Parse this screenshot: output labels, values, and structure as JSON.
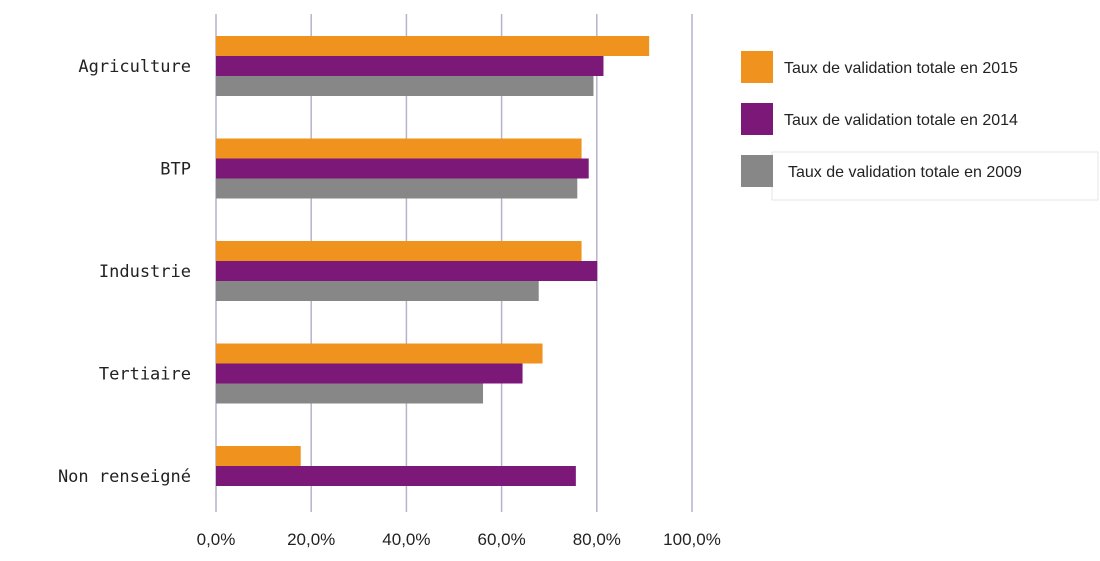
{
  "chart_data": {
    "type": "bar",
    "orientation": "horizontal",
    "categories": [
      "Agriculture",
      "BTP",
      "Industrie",
      "Tertiaire",
      "Non renseigné"
    ],
    "series": [
      {
        "name": "Taux de validation totale en 2015",
        "color": "#F0921E",
        "values": [
          91.0,
          76.8,
          76.8,
          68.6,
          17.8
        ]
      },
      {
        "name": "Taux de validation totale en 2014",
        "color": "#7B1878",
        "values": [
          81.4,
          78.3,
          80.1,
          64.4,
          75.6
        ]
      },
      {
        "name": "Taux de validation totale en 2009",
        "color": "#878787",
        "values": [
          79.3,
          75.9,
          67.8,
          56.1,
          null
        ]
      }
    ],
    "xlim": [
      0,
      100
    ],
    "xticks": [
      0,
      20,
      40,
      60,
      80,
      100
    ],
    "xtick_labels": [
      "0,0%",
      "20,0%",
      "40,0%",
      "60,0%",
      "80,0%",
      "100,0%"
    ],
    "grid": true,
    "legend_position": "right",
    "title": "",
    "xlabel": "",
    "ylabel": ""
  }
}
